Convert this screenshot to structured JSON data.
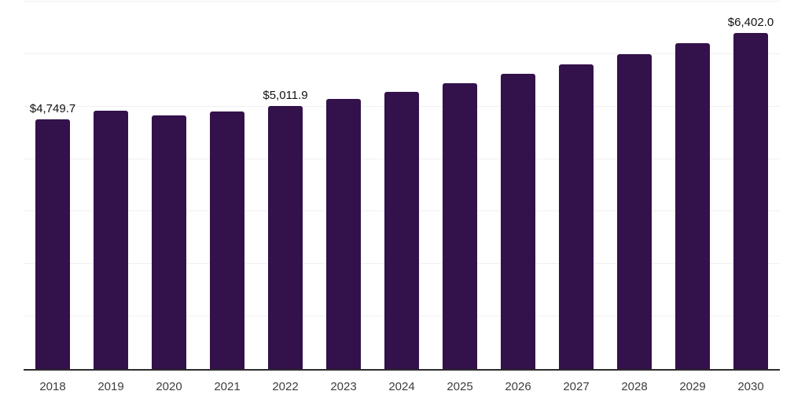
{
  "chart_data": {
    "type": "bar",
    "title": "",
    "xlabel": "",
    "ylabel": "",
    "categories": [
      "2018",
      "2019",
      "2020",
      "2021",
      "2022",
      "2023",
      "2024",
      "2025",
      "2026",
      "2027",
      "2028",
      "2029",
      "2030"
    ],
    "values": [
      4749.7,
      4915,
      4825,
      4900,
      5011.9,
      5150,
      5280,
      5450,
      5620,
      5800,
      5995,
      6205,
      6402.0
    ],
    "data_labels": [
      "$4,749.7",
      "",
      "",
      "",
      "$5,011.9",
      "",
      "",
      "",
      "",
      "",
      "",
      "",
      "$6,402.0"
    ],
    "ylim": [
      0,
      7000
    ],
    "grid_step": 1000,
    "grid": true,
    "legend": false
  },
  "colors": {
    "bar": "#33114a",
    "gridline": "#f0f0f0",
    "axis_line": "#2b2b2b",
    "data_label": "#111111",
    "tick_label": "#3d3d3d",
    "background": "#ffffff"
  }
}
